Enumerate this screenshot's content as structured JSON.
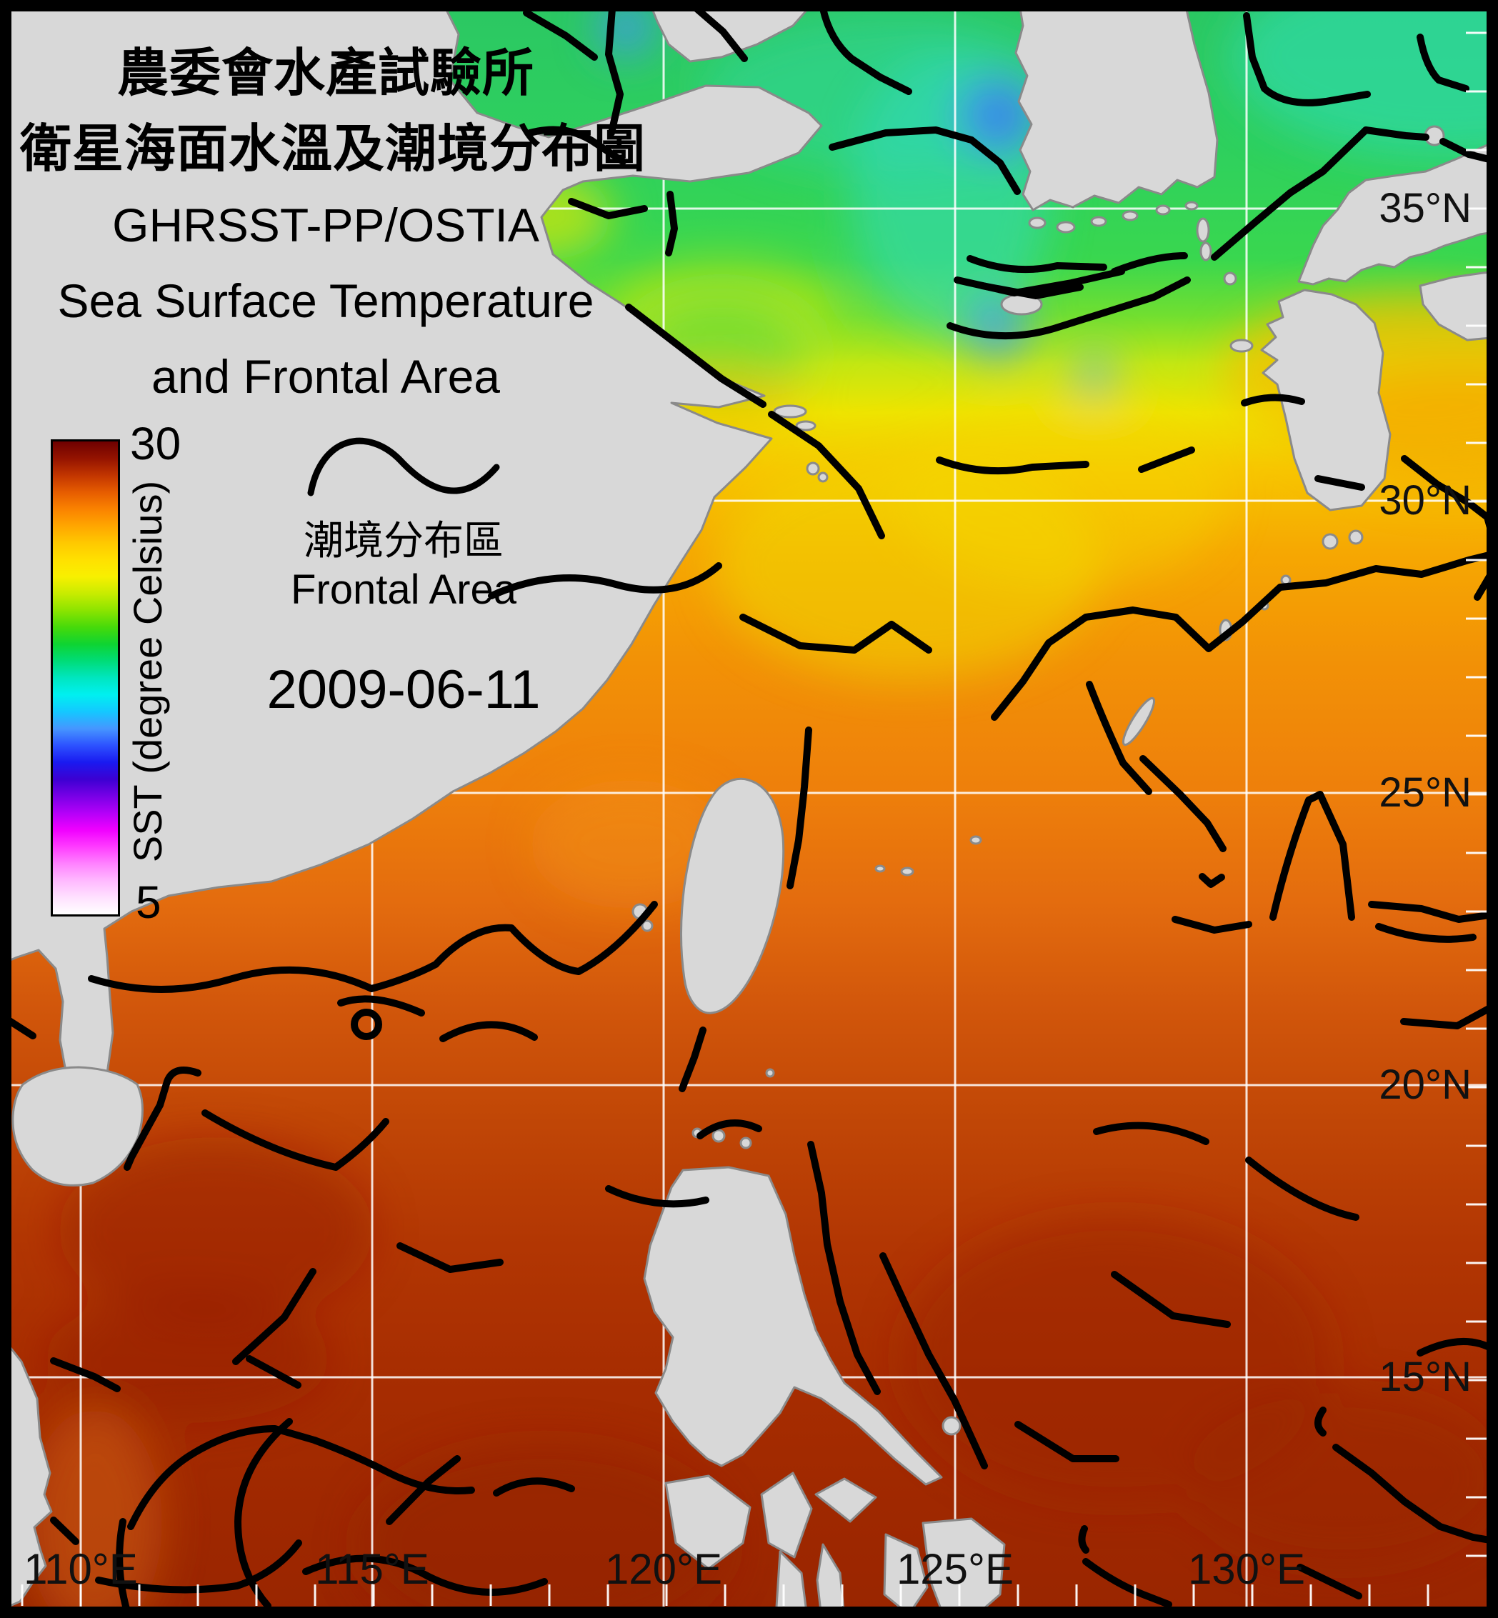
{
  "header": {
    "title_zh_1": "農委會水產試驗所",
    "title_zh_2": "衛星海面水溫及潮境分布圖",
    "title_en_1": "GHRSST-PP/OSTIA",
    "title_en_2": "Sea Surface Temperature",
    "title_en_3": "and Frontal Area"
  },
  "colorbar": {
    "max_label": "30",
    "min_label": "5",
    "axis_label": "SST (degree Celsius)",
    "stops_top_to_bottom": [
      "#6e0000",
      "#941300",
      "#c23500",
      "#e65c00",
      "#fa8200",
      "#ffa600",
      "#ffc800",
      "#ffe000",
      "#f8f000",
      "#c8ec00",
      "#8ce400",
      "#46da0a",
      "#0ed432",
      "#00dc78",
      "#00e6c0",
      "#00f0f0",
      "#14c8ff",
      "#4696ff",
      "#2d52ff",
      "#1a1af0",
      "#3c00d2",
      "#7800e6",
      "#b400f8",
      "#f000ff",
      "#ff3cff",
      "#ff82ff",
      "#ffb9ff",
      "#ffe1ff",
      "#ffffff"
    ]
  },
  "legend": {
    "symbol": "frontal-line-wave",
    "label_zh": "潮境分布區",
    "label_en": "Frontal Area"
  },
  "date_label": "2009-06-11",
  "axes": {
    "lat_labels": [
      "35°N",
      "30°N",
      "25°N",
      "20°N",
      "15°N"
    ],
    "lon_labels": [
      "110°E",
      "115°E",
      "120°E",
      "125°E",
      "130°E"
    ]
  },
  "colors": {
    "land": "#d8d8d8",
    "coastline": "#8a8a8a",
    "grid": "#ffffff",
    "front": "#000000",
    "frame": "#000000"
  },
  "chart_data": {
    "type": "heatmap",
    "title": "GHRSST-PP/OSTIA Sea Surface Temperature and Frontal Area",
    "source_label": "農委會水產試驗所 衛星海面水溫及潮境分布圖",
    "date": "2009-06-11",
    "variable": "SST (degree Celsius)",
    "scale_range": [
      5,
      30
    ],
    "lon_range_deg_e": [
      108.8,
      134.3
    ],
    "lat_range_deg_n": [
      10.9,
      38.6
    ],
    "lon_gridlines_deg_e": [
      110,
      115,
      120,
      125,
      130
    ],
    "lat_gridlines_deg_n": [
      35,
      30,
      25,
      20,
      15
    ],
    "grid": "on",
    "legend_position": "upper-left",
    "overlay": "black frontal-area lines along SST gradients",
    "sst_by_latitude_c": [
      {
        "lat_n": 38,
        "sst_c": 17.5
      },
      {
        "lat_n": 35,
        "sst_c": 19
      },
      {
        "lat_n": 33,
        "sst_c": 21
      },
      {
        "lat_n": 31,
        "sst_c": 23
      },
      {
        "lat_n": 29,
        "sst_c": 24.5
      },
      {
        "lat_n": 27,
        "sst_c": 25.5
      },
      {
        "lat_n": 25,
        "sst_c": 26.5
      },
      {
        "lat_n": 22,
        "sst_c": 27.5
      },
      {
        "lat_n": 20,
        "sst_c": 28
      },
      {
        "lat_n": 15,
        "sst_c": 29
      },
      {
        "lat_n": 12,
        "sst_c": 29.5
      }
    ],
    "sea_gradient_stops": [
      [
        "0%",
        "#2bc763"
      ],
      [
        "9%",
        "#2ed05e"
      ],
      [
        "16%",
        "#39d74f"
      ],
      [
        "19.5%",
        "#71df30"
      ],
      [
        "22.5%",
        "#c3e713"
      ],
      [
        "25.5%",
        "#eee400"
      ],
      [
        "29%",
        "#f7c600"
      ],
      [
        "34%",
        "#f6a802"
      ],
      [
        "41%",
        "#f29106"
      ],
      [
        "49%",
        "#ee7f0b"
      ],
      [
        "56%",
        "#e36b0e"
      ],
      [
        "62%",
        "#d2570b"
      ],
      [
        "69%",
        "#c14706"
      ],
      [
        "77%",
        "#b23603"
      ],
      [
        "85%",
        "#a72d01"
      ],
      [
        "93%",
        "#9f2800"
      ],
      [
        "100%",
        "#992500"
      ]
    ],
    "cold_features": "cyan/blue cold patches in Yellow Sea west of Korea and Bohai",
    "warm_features": "dark red (>29C) South China Sea and Philippine Sea; Kuroshio warm tongue south of Japan"
  }
}
